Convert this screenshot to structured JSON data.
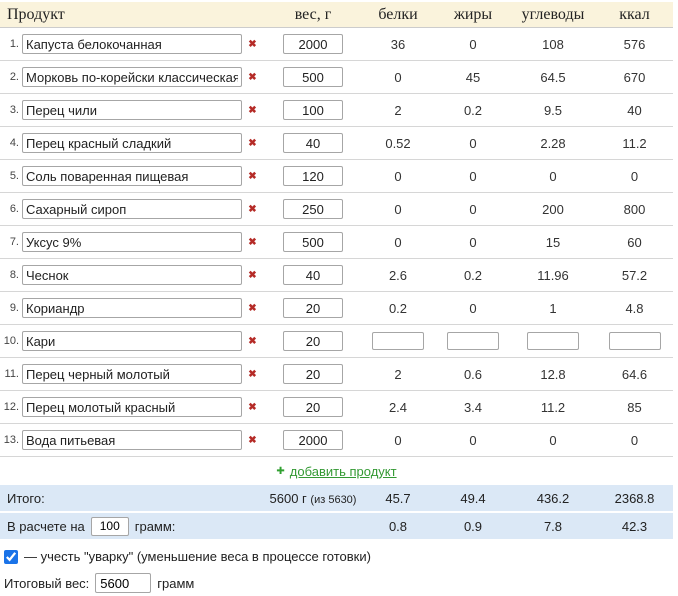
{
  "header": {
    "product": "Продукт",
    "weight": "вес, г",
    "protein": "белки",
    "fat": "жиры",
    "carbs": "углеводы",
    "kcal": "ккал"
  },
  "icons": {
    "delete": "✖",
    "plus": "✚"
  },
  "rows": [
    {
      "num": "1.",
      "name": "Капуста белокочанная",
      "weight": "2000",
      "protein": "36",
      "fat": "0",
      "carbs": "108",
      "kcal": "576",
      "editable": false
    },
    {
      "num": "2.",
      "name": "Морковь по-корейски классическая",
      "weight": "500",
      "protein": "0",
      "fat": "45",
      "carbs": "64.5",
      "kcal": "670",
      "editable": false
    },
    {
      "num": "3.",
      "name": "Перец чили",
      "weight": "100",
      "protein": "2",
      "fat": "0.2",
      "carbs": "9.5",
      "kcal": "40",
      "editable": false
    },
    {
      "num": "4.",
      "name": "Перец красный сладкий",
      "weight": "40",
      "protein": "0.52",
      "fat": "0",
      "carbs": "2.28",
      "kcal": "11.2",
      "editable": false
    },
    {
      "num": "5.",
      "name": "Соль поваренная пищевая",
      "weight": "120",
      "protein": "0",
      "fat": "0",
      "carbs": "0",
      "kcal": "0",
      "editable": false
    },
    {
      "num": "6.",
      "name": "Сахарный сироп",
      "weight": "250",
      "protein": "0",
      "fat": "0",
      "carbs": "200",
      "kcal": "800",
      "editable": false
    },
    {
      "num": "7.",
      "name": "Уксус 9%",
      "weight": "500",
      "protein": "0",
      "fat": "0",
      "carbs": "15",
      "kcal": "60",
      "editable": false
    },
    {
      "num": "8.",
      "name": "Чеснок",
      "weight": "40",
      "protein": "2.6",
      "fat": "0.2",
      "carbs": "11.96",
      "kcal": "57.2",
      "editable": false
    },
    {
      "num": "9.",
      "name": "Кориандр",
      "weight": "20",
      "protein": "0.2",
      "fat": "0",
      "carbs": "1",
      "kcal": "4.8",
      "editable": false
    },
    {
      "num": "10.",
      "name": "Кари",
      "weight": "20",
      "protein": "",
      "fat": "",
      "carbs": "",
      "kcal": "",
      "editable": true
    },
    {
      "num": "11.",
      "name": "Перец черный молотый",
      "weight": "20",
      "protein": "2",
      "fat": "0.6",
      "carbs": "12.8",
      "kcal": "64.6",
      "editable": false
    },
    {
      "num": "12.",
      "name": "Перец молотый красный",
      "weight": "20",
      "protein": "2.4",
      "fat": "3.4",
      "carbs": "11.2",
      "kcal": "85",
      "editable": false
    },
    {
      "num": "13.",
      "name": "Вода питьевая",
      "weight": "2000",
      "protein": "0",
      "fat": "0",
      "carbs": "0",
      "kcal": "0",
      "editable": false
    }
  ],
  "add": {
    "label": "добавить продукт"
  },
  "totals": {
    "label": "Итого:",
    "weight": "5600 г",
    "weight_note": "(из 5630)",
    "protein": "45.7",
    "fat": "49.4",
    "carbs": "436.2",
    "kcal": "2368.8"
  },
  "per": {
    "prefix": "В расчете на",
    "value": "100",
    "suffix": "грамм:",
    "protein": "0.8",
    "fat": "0.9",
    "carbs": "7.8",
    "kcal": "42.3"
  },
  "options": {
    "checked": true,
    "label": "— учесть \"уварку\" (уменьшение веса в процессе готовки)"
  },
  "final": {
    "label": "Итоговый вес:",
    "value": "5600",
    "unit": "грамм"
  },
  "colors": {
    "header_bg": "#faf3dc",
    "totals_bg": "#dbe8f6",
    "link_green": "#339933",
    "delete_red": "#b52b27",
    "checkbox_blue": "#1a73e8",
    "row_border": "#d6d6d6"
  }
}
